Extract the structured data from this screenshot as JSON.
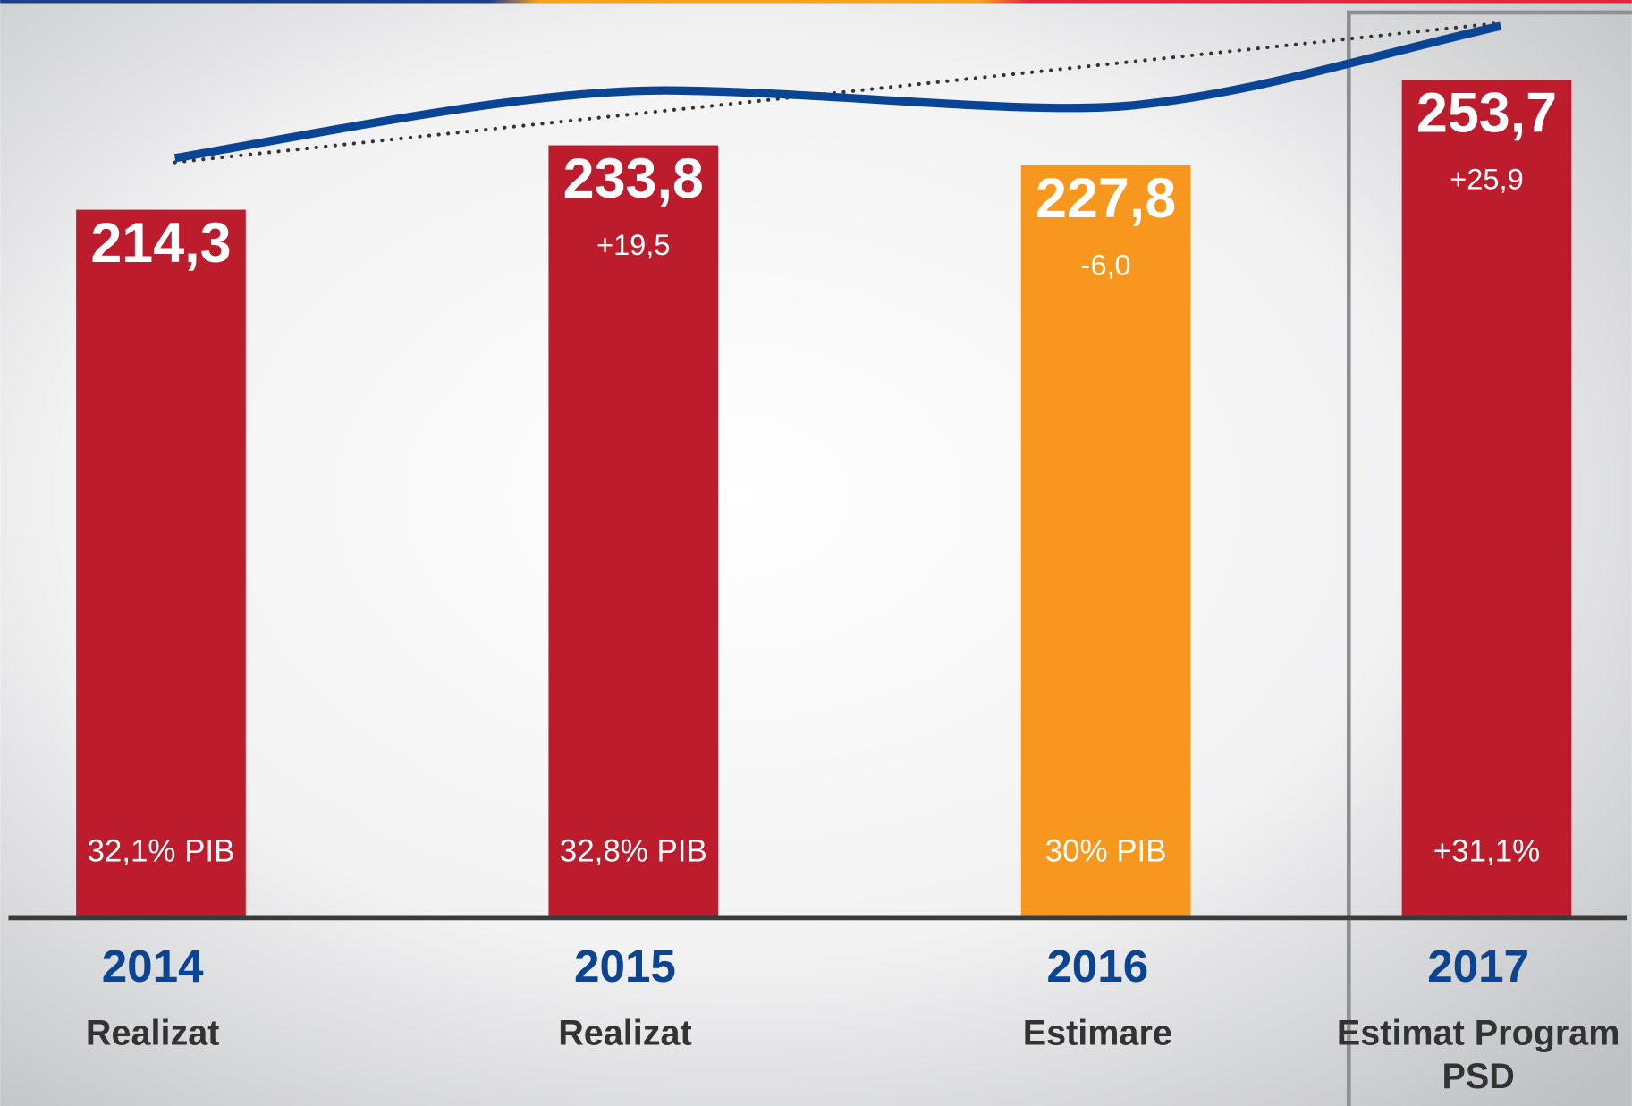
{
  "chart_data": {
    "type": "bar",
    "categories": [
      "2014",
      "2015",
      "2016",
      "2017"
    ],
    "sublabels": [
      "Realizat",
      "Realizat",
      "Estimare",
      "Estimat Program PSD"
    ],
    "values": [
      214.3,
      233.8,
      227.8,
      253.7
    ],
    "value_labels": [
      "214,3",
      "233,8",
      "227,8",
      "253,7"
    ],
    "changes": [
      null,
      "+19,5",
      "-6,0",
      "+25,9"
    ],
    "shares": [
      "32,1% PIB",
      "32,8% PIB",
      "30% PIB",
      "+31,1%"
    ],
    "colors": [
      "#bc1c2c",
      "#bc1c2c",
      "#f7971e",
      "#bc1c2c"
    ],
    "ylim": [
      0,
      280
    ]
  }
}
